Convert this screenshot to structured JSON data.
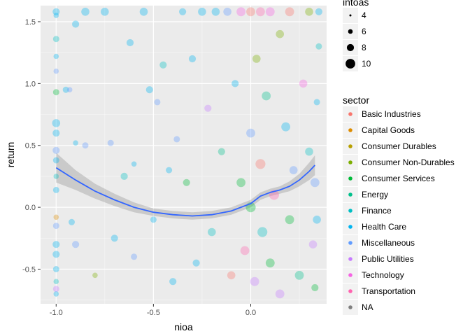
{
  "chart_data": {
    "type": "scatter",
    "xlabel": "nioa",
    "ylabel": "return",
    "xlim": [
      -1.08,
      0.39
    ],
    "ylim": [
      -0.78,
      1.63
    ],
    "x_ticks": [
      -1.0,
      -0.5,
      0.0
    ],
    "x_tick_labels": [
      "-1.0",
      "-0.5",
      "0.0"
    ],
    "y_ticks": [
      -0.5,
      0.0,
      0.5,
      1.0,
      1.5
    ],
    "y_tick_labels": [
      "-0.5",
      "0.0",
      "0.5",
      "1.0",
      "1.5"
    ],
    "grid": true,
    "background": "#ebebeb",
    "legend_placement": "right",
    "size_legend": {
      "title": "intoas",
      "values": [
        4,
        6,
        8,
        10
      ],
      "labels": [
        "4",
        "6",
        "8",
        "10"
      ]
    },
    "color_legend": {
      "title": "sector",
      "entries": [
        {
          "label": "Basic Industries",
          "color": "#f8766d"
        },
        {
          "label": "Capital Goods",
          "color": "#de8c00"
        },
        {
          "label": "Consumer Durables",
          "color": "#b79f00"
        },
        {
          "label": "Consumer Non-Durables",
          "color": "#7cae00"
        },
        {
          "label": "Consumer Services",
          "color": "#00ba38"
        },
        {
          "label": "Energy",
          "color": "#00c08b"
        },
        {
          "label": "Finance",
          "color": "#00bfc4"
        },
        {
          "label": "Health Care",
          "color": "#00b4f0"
        },
        {
          "label": "Miscellaneous",
          "color": "#619cff"
        },
        {
          "label": "Public Utilities",
          "color": "#c77cff"
        },
        {
          "label": "Technology",
          "color": "#f564e3"
        },
        {
          "label": "Transportation",
          "color": "#ff64b0"
        },
        {
          "label": "NA",
          "color": "#7f7f7f"
        }
      ]
    },
    "smooth": {
      "color": "#3366ff",
      "band_color": "#999999",
      "x": [
        -1.0,
        -0.9,
        -0.8,
        -0.7,
        -0.6,
        -0.5,
        -0.4,
        -0.3,
        -0.2,
        -0.1,
        0.0,
        0.05,
        0.1,
        0.15,
        0.2,
        0.25,
        0.3,
        0.33
      ],
      "y": [
        0.32,
        0.22,
        0.13,
        0.06,
        0.0,
        -0.04,
        -0.06,
        -0.07,
        -0.06,
        -0.03,
        0.03,
        0.09,
        0.12,
        0.14,
        0.17,
        0.22,
        0.29,
        0.34
      ],
      "y_lower": [
        0.2,
        0.14,
        0.07,
        0.01,
        -0.04,
        -0.07,
        -0.09,
        -0.1,
        -0.09,
        -0.06,
        0.0,
        0.06,
        0.09,
        0.11,
        0.13,
        0.17,
        0.22,
        0.26
      ],
      "y_upper": [
        0.44,
        0.3,
        0.19,
        0.11,
        0.04,
        -0.01,
        -0.03,
        -0.04,
        -0.03,
        0.0,
        0.06,
        0.12,
        0.15,
        0.17,
        0.21,
        0.27,
        0.36,
        0.42
      ]
    },
    "points": [
      {
        "x": -1.0,
        "y": 1.58,
        "s": 6,
        "c": 7
      },
      {
        "x": -1.0,
        "y": 1.55,
        "s": 4,
        "c": 7
      },
      {
        "x": -1.0,
        "y": 1.36,
        "s": 5,
        "c": 6
      },
      {
        "x": -1.0,
        "y": 1.22,
        "s": 4,
        "c": 7
      },
      {
        "x": -1.0,
        "y": 1.1,
        "s": 4,
        "c": 8
      },
      {
        "x": -1.0,
        "y": 0.93,
        "s": 5,
        "c": 4
      },
      {
        "x": -1.0,
        "y": 0.68,
        "s": 7,
        "c": 7
      },
      {
        "x": -1.0,
        "y": 0.6,
        "s": 6,
        "c": 7
      },
      {
        "x": -1.0,
        "y": 0.46,
        "s": 6,
        "c": 8
      },
      {
        "x": -1.0,
        "y": 0.38,
        "s": 5,
        "c": 7
      },
      {
        "x": -1.0,
        "y": 0.25,
        "s": 4,
        "c": 6
      },
      {
        "x": -1.0,
        "y": 0.14,
        "s": 5,
        "c": 7
      },
      {
        "x": -1.0,
        "y": -0.08,
        "s": 4,
        "c": 1
      },
      {
        "x": -1.0,
        "y": -0.15,
        "s": 5,
        "c": 8
      },
      {
        "x": -1.0,
        "y": -0.3,
        "s": 6,
        "c": 7
      },
      {
        "x": -1.0,
        "y": -0.38,
        "s": 6,
        "c": 7
      },
      {
        "x": -1.0,
        "y": -0.5,
        "s": 5,
        "c": 7
      },
      {
        "x": -1.0,
        "y": -0.6,
        "s": 4,
        "c": 6
      },
      {
        "x": -1.0,
        "y": -0.66,
        "s": 5,
        "c": 9
      },
      {
        "x": -1.0,
        "y": -0.7,
        "s": 4,
        "c": 7
      },
      {
        "x": -0.95,
        "y": 0.95,
        "s": 5,
        "c": 7
      },
      {
        "x": -0.93,
        "y": 0.95,
        "s": 4,
        "c": 8
      },
      {
        "x": -0.9,
        "y": 1.48,
        "s": 6,
        "c": 7
      },
      {
        "x": -0.9,
        "y": -0.3,
        "s": 6,
        "c": 8
      },
      {
        "x": -0.92,
        "y": -0.12,
        "s": 5,
        "c": 7
      },
      {
        "x": -0.85,
        "y": 0.5,
        "s": 5,
        "c": 8
      },
      {
        "x": -0.9,
        "y": 0.52,
        "s": 4,
        "c": 7
      },
      {
        "x": -0.8,
        "y": -0.55,
        "s": 4,
        "c": 3
      },
      {
        "x": -0.85,
        "y": 1.58,
        "s": 7,
        "c": 7
      },
      {
        "x": -0.75,
        "y": 1.58,
        "s": 7,
        "c": 7
      },
      {
        "x": -0.72,
        "y": 0.52,
        "s": 5,
        "c": 8
      },
      {
        "x": -0.7,
        "y": -0.25,
        "s": 6,
        "c": 7
      },
      {
        "x": -0.65,
        "y": 0.25,
        "s": 6,
        "c": 6
      },
      {
        "x": -0.62,
        "y": 1.33,
        "s": 6,
        "c": 7
      },
      {
        "x": -0.6,
        "y": -0.4,
        "s": 5,
        "c": 8
      },
      {
        "x": -0.6,
        "y": 0.35,
        "s": 4,
        "c": 7
      },
      {
        "x": -0.55,
        "y": 1.58,
        "s": 7,
        "c": 7
      },
      {
        "x": -0.52,
        "y": 0.95,
        "s": 6,
        "c": 7
      },
      {
        "x": -0.5,
        "y": -0.1,
        "s": 5,
        "c": 7
      },
      {
        "x": -0.48,
        "y": 0.85,
        "s": 5,
        "c": 8
      },
      {
        "x": -0.45,
        "y": 1.15,
        "s": 6,
        "c": 6
      },
      {
        "x": -0.42,
        "y": 0.3,
        "s": 5,
        "c": 7
      },
      {
        "x": -0.4,
        "y": -0.6,
        "s": 6,
        "c": 7
      },
      {
        "x": -0.38,
        "y": 0.55,
        "s": 5,
        "c": 8
      },
      {
        "x": -0.35,
        "y": 1.58,
        "s": 6,
        "c": 7
      },
      {
        "x": -0.33,
        "y": 0.2,
        "s": 6,
        "c": 4
      },
      {
        "x": -0.3,
        "y": 1.2,
        "s": 6,
        "c": 7
      },
      {
        "x": -0.28,
        "y": -0.45,
        "s": 6,
        "c": 7
      },
      {
        "x": -0.25,
        "y": 1.58,
        "s": 7,
        "c": 7
      },
      {
        "x": -0.22,
        "y": 0.8,
        "s": 6,
        "c": 9
      },
      {
        "x": -0.2,
        "y": -0.2,
        "s": 7,
        "c": 6
      },
      {
        "x": -0.18,
        "y": 1.58,
        "s": 7,
        "c": 7
      },
      {
        "x": -0.15,
        "y": 0.45,
        "s": 6,
        "c": 5
      },
      {
        "x": -0.12,
        "y": 1.58,
        "s": 7,
        "c": 8
      },
      {
        "x": -0.1,
        "y": -0.55,
        "s": 7,
        "c": 0
      },
      {
        "x": -0.08,
        "y": 1.0,
        "s": 6,
        "c": 7
      },
      {
        "x": -0.05,
        "y": 1.58,
        "s": 8,
        "c": 10
      },
      {
        "x": -0.05,
        "y": 0.2,
        "s": 8,
        "c": 4
      },
      {
        "x": -0.03,
        "y": -0.35,
        "s": 8,
        "c": 11
      },
      {
        "x": 0.0,
        "y": 1.58,
        "s": 8,
        "c": 0
      },
      {
        "x": 0.0,
        "y": 0.6,
        "s": 8,
        "c": 8
      },
      {
        "x": 0.0,
        "y": 0.0,
        "s": 9,
        "c": 4
      },
      {
        "x": 0.02,
        "y": -0.6,
        "s": 8,
        "c": 9
      },
      {
        "x": 0.03,
        "y": 1.2,
        "s": 7,
        "c": 3
      },
      {
        "x": 0.05,
        "y": 1.58,
        "s": 8,
        "c": 11
      },
      {
        "x": 0.05,
        "y": 0.35,
        "s": 9,
        "c": 0
      },
      {
        "x": 0.06,
        "y": -0.2,
        "s": 9,
        "c": 6
      },
      {
        "x": 0.08,
        "y": 0.9,
        "s": 8,
        "c": 5
      },
      {
        "x": 0.1,
        "y": 1.58,
        "s": 8,
        "c": 10
      },
      {
        "x": 0.1,
        "y": -0.45,
        "s": 8,
        "c": 4
      },
      {
        "x": 0.12,
        "y": 0.1,
        "s": 9,
        "c": 11
      },
      {
        "x": 0.15,
        "y": 1.4,
        "s": 7,
        "c": 3
      },
      {
        "x": 0.15,
        "y": -0.7,
        "s": 8,
        "c": 9
      },
      {
        "x": 0.18,
        "y": 0.65,
        "s": 8,
        "c": 7
      },
      {
        "x": 0.2,
        "y": 1.58,
        "s": 8,
        "c": 0
      },
      {
        "x": 0.2,
        "y": -0.1,
        "s": 8,
        "c": 4
      },
      {
        "x": 0.22,
        "y": 0.3,
        "s": 7,
        "c": 8
      },
      {
        "x": 0.25,
        "y": -0.55,
        "s": 8,
        "c": 5
      },
      {
        "x": 0.27,
        "y": 1.0,
        "s": 7,
        "c": 10
      },
      {
        "x": 0.3,
        "y": 1.58,
        "s": 7,
        "c": 3
      },
      {
        "x": 0.3,
        "y": 0.45,
        "s": 7,
        "c": 6
      },
      {
        "x": 0.32,
        "y": -0.3,
        "s": 7,
        "c": 9
      },
      {
        "x": 0.33,
        "y": 0.2,
        "s": 8,
        "c": 8
      },
      {
        "x": 0.35,
        "y": 1.58,
        "s": 6,
        "c": 7
      },
      {
        "x": 0.35,
        "y": 1.3,
        "s": 5,
        "c": 6
      },
      {
        "x": 0.34,
        "y": 0.85,
        "s": 5,
        "c": 7
      },
      {
        "x": 0.33,
        "y": -0.65,
        "s": 6,
        "c": 4
      },
      {
        "x": 0.34,
        "y": -0.1,
        "s": 7,
        "c": 7
      }
    ]
  }
}
